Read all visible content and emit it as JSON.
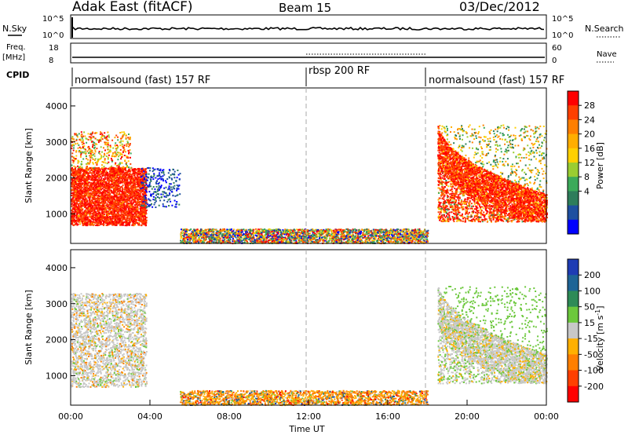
{
  "header": {
    "title": "Adak East (fitACF)",
    "beam": "Beam 15",
    "date": "03/Dec/2012"
  },
  "status_panels": {
    "nsky_label": "N.Sky",
    "nsky_ticks": [
      "10^5",
      "10^0"
    ],
    "nsearch_label": "N.Search",
    "nsearch_ticks": [
      "10^5",
      "10^0"
    ],
    "freq_label": "Freq.",
    "freq_unit": "[MHz]",
    "freq_ticks": [
      "18",
      "8"
    ],
    "nave_label": "Nave",
    "nave_ticks": [
      "60",
      "0"
    ],
    "cpid_label": "CPID",
    "cpid_segments": [
      {
        "label": "normalsound (fast) 157 RF",
        "start": "00:00"
      },
      {
        "label": "rbsp 200 RF",
        "start": "12:00"
      },
      {
        "label": "normalsound (fast) 157 RF",
        "start": "18:00"
      }
    ]
  },
  "colorbars": {
    "power": {
      "label": "Power [dB]",
      "ticks": [
        "28",
        "24",
        "20",
        "16",
        "12",
        "8",
        "4"
      ],
      "colors": [
        "#ff0000",
        "#ff4000",
        "#ff7f00",
        "#ffae00",
        "#ffd000",
        "#9acd32",
        "#3caa5a",
        "#2e7d5b",
        "#1e4fa0",
        "#0000ff"
      ]
    },
    "velocity": {
      "label_main": "Velocity [m s",
      "label_sup": "-1",
      "label_end": "]",
      "ticks": [
        "200",
        "100",
        "50",
        "15",
        "-15",
        "-50",
        "-100",
        "-200"
      ],
      "colors": [
        "#1e3cb4",
        "#1e6496",
        "#2e8b57",
        "#6cc83c",
        "#c8c8c8",
        "#ffb000",
        "#ff7f00",
        "#ff4000",
        "#ff0000"
      ]
    }
  },
  "chart_data": [
    {
      "type": "heatmap",
      "name": "power",
      "ylabel": "Slant Range [km]",
      "yticks": [
        1000,
        2000,
        3000,
        4000
      ],
      "ylim": [
        180,
        4500
      ],
      "xlim_hours": [
        0,
        24
      ],
      "regions": [
        {
          "t0": 0.0,
          "t1": 3.8,
          "r0": 700,
          "r1": 2300,
          "band": "strong"
        },
        {
          "t0": 0.0,
          "t1": 3.0,
          "r0": 2300,
          "r1": 3300,
          "band": "scattered"
        },
        {
          "t0": 3.5,
          "t1": 5.5,
          "r0": 1200,
          "r1": 2300,
          "band": "weak"
        },
        {
          "t0": 5.5,
          "t1": 18.0,
          "r0": 200,
          "r1": 600,
          "band": "mixed"
        },
        {
          "t0": 18.5,
          "t1": 24.0,
          "r0": 800,
          "r1": 3500,
          "band": "strong_arc"
        }
      ]
    },
    {
      "type": "heatmap",
      "name": "velocity",
      "ylabel": "Slant Range [km]",
      "yticks": [
        1000,
        2000,
        3000,
        4000
      ],
      "ylim": [
        180,
        4500
      ],
      "xlim_hours": [
        0,
        24
      ],
      "regions": [
        {
          "t0": 0.0,
          "t1": 3.8,
          "r0": 700,
          "r1": 3300,
          "band": "near_zero"
        },
        {
          "t0": 5.5,
          "t1": 18.0,
          "r0": 200,
          "r1": 600,
          "band": "negative"
        },
        {
          "t0": 18.5,
          "t1": 24.0,
          "r0": 800,
          "r1": 3500,
          "band": "near_zero_arc"
        }
      ]
    }
  ],
  "xaxis": {
    "label": "Time UT",
    "ticks": [
      "00:00",
      "04:00",
      "08:00",
      "12:00",
      "16:00",
      "20:00",
      "00:00"
    ]
  }
}
